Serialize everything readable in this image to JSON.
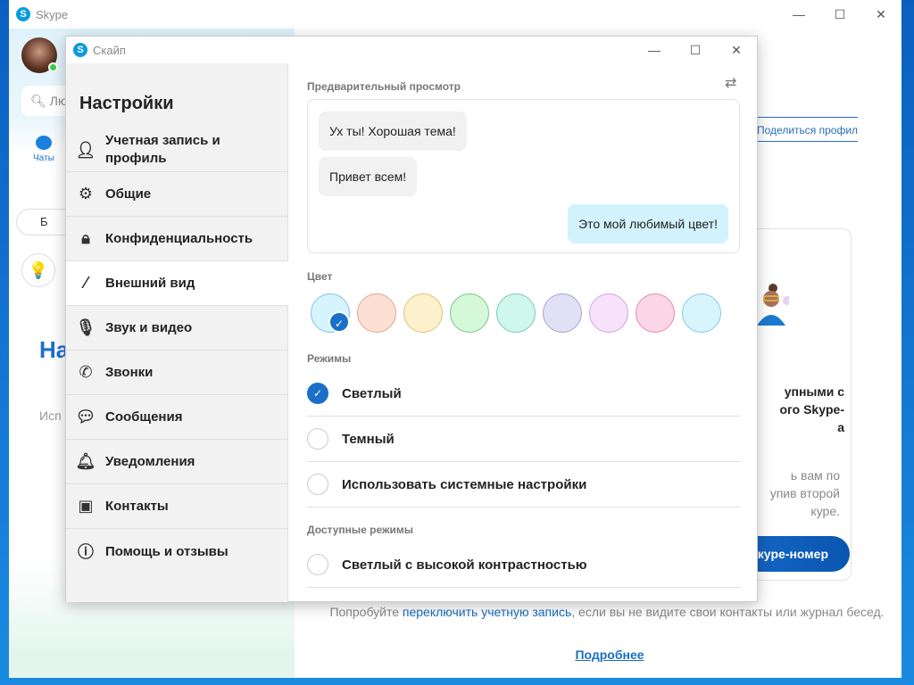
{
  "main_window": {
    "title": "Skype",
    "search_placeholder": "Лю",
    "chats_label": "Чаты",
    "meet_label": "Б",
    "heading_partial": "На",
    "text_partial": "Исп",
    "share_profile": "Поделиться профилем",
    "card": {
      "title": "упными с\nого Skype-\nа",
      "text": "ь вам по\nупив второй\nкуре.",
      "button": "кype-номер"
    },
    "footer": {
      "before": "Попробуйте ",
      "link": "переключить учетную запись",
      "after": ", если вы не видите свои контакты или журнал бесед."
    },
    "more_link": "Подробнее"
  },
  "dialog": {
    "title": "Скайп",
    "heading": "Настройки",
    "items": [
      {
        "label": "Учетная запись и профиль",
        "icon": "person-icon"
      },
      {
        "label": "Общие",
        "icon": "gear-icon"
      },
      {
        "label": "Конфиденциальность",
        "icon": "lock-icon"
      },
      {
        "label": "Внешний вид",
        "icon": "magic-wand-icon",
        "selected": true
      },
      {
        "label": "Звук и видео",
        "icon": "microphone-icon"
      },
      {
        "label": "Звонки",
        "icon": "phone-icon"
      },
      {
        "label": "Сообщения",
        "icon": "message-icon"
      },
      {
        "label": "Уведомления",
        "icon": "bell-icon"
      },
      {
        "label": "Контакты",
        "icon": "contacts-icon"
      },
      {
        "label": "Помощь и отзывы",
        "icon": "info-icon"
      }
    ],
    "preview_label": "Предварительный просмотр",
    "messages": [
      {
        "text": "Ух ты! Хорошая тема!",
        "dir": "in"
      },
      {
        "text": "Привет всем!",
        "dir": "in"
      },
      {
        "text": "Это мой любимый цвет!",
        "dir": "out"
      }
    ],
    "color_label": "Цвет",
    "colors": [
      {
        "fill": "#d6f4fd",
        "border": "#7ec3e6",
        "selected": true
      },
      {
        "fill": "#fde0d4",
        "border": "#e6a38c"
      },
      {
        "fill": "#fdf0cc",
        "border": "#e2c27a"
      },
      {
        "fill": "#d4f8d8",
        "border": "#7cc888"
      },
      {
        "fill": "#cff7ec",
        "border": "#7ccab4"
      },
      {
        "fill": "#e2e0f4",
        "border": "#a8a4d4"
      },
      {
        "fill": "#f6e2fa",
        "border": "#d4a0e4"
      },
      {
        "fill": "#fad6e6",
        "border": "#e48cb0"
      },
      {
        "fill": "#d8f4fd",
        "border": "#86c8e8"
      }
    ],
    "modes_label": "Режимы",
    "modes": [
      {
        "label": "Светлый",
        "checked": true
      },
      {
        "label": "Темный",
        "checked": false
      },
      {
        "label": "Использовать системные настройки",
        "checked": false
      }
    ],
    "available_label": "Доступные режимы",
    "available": [
      {
        "label": "Светлый с высокой контрастностью",
        "checked": false
      }
    ]
  }
}
